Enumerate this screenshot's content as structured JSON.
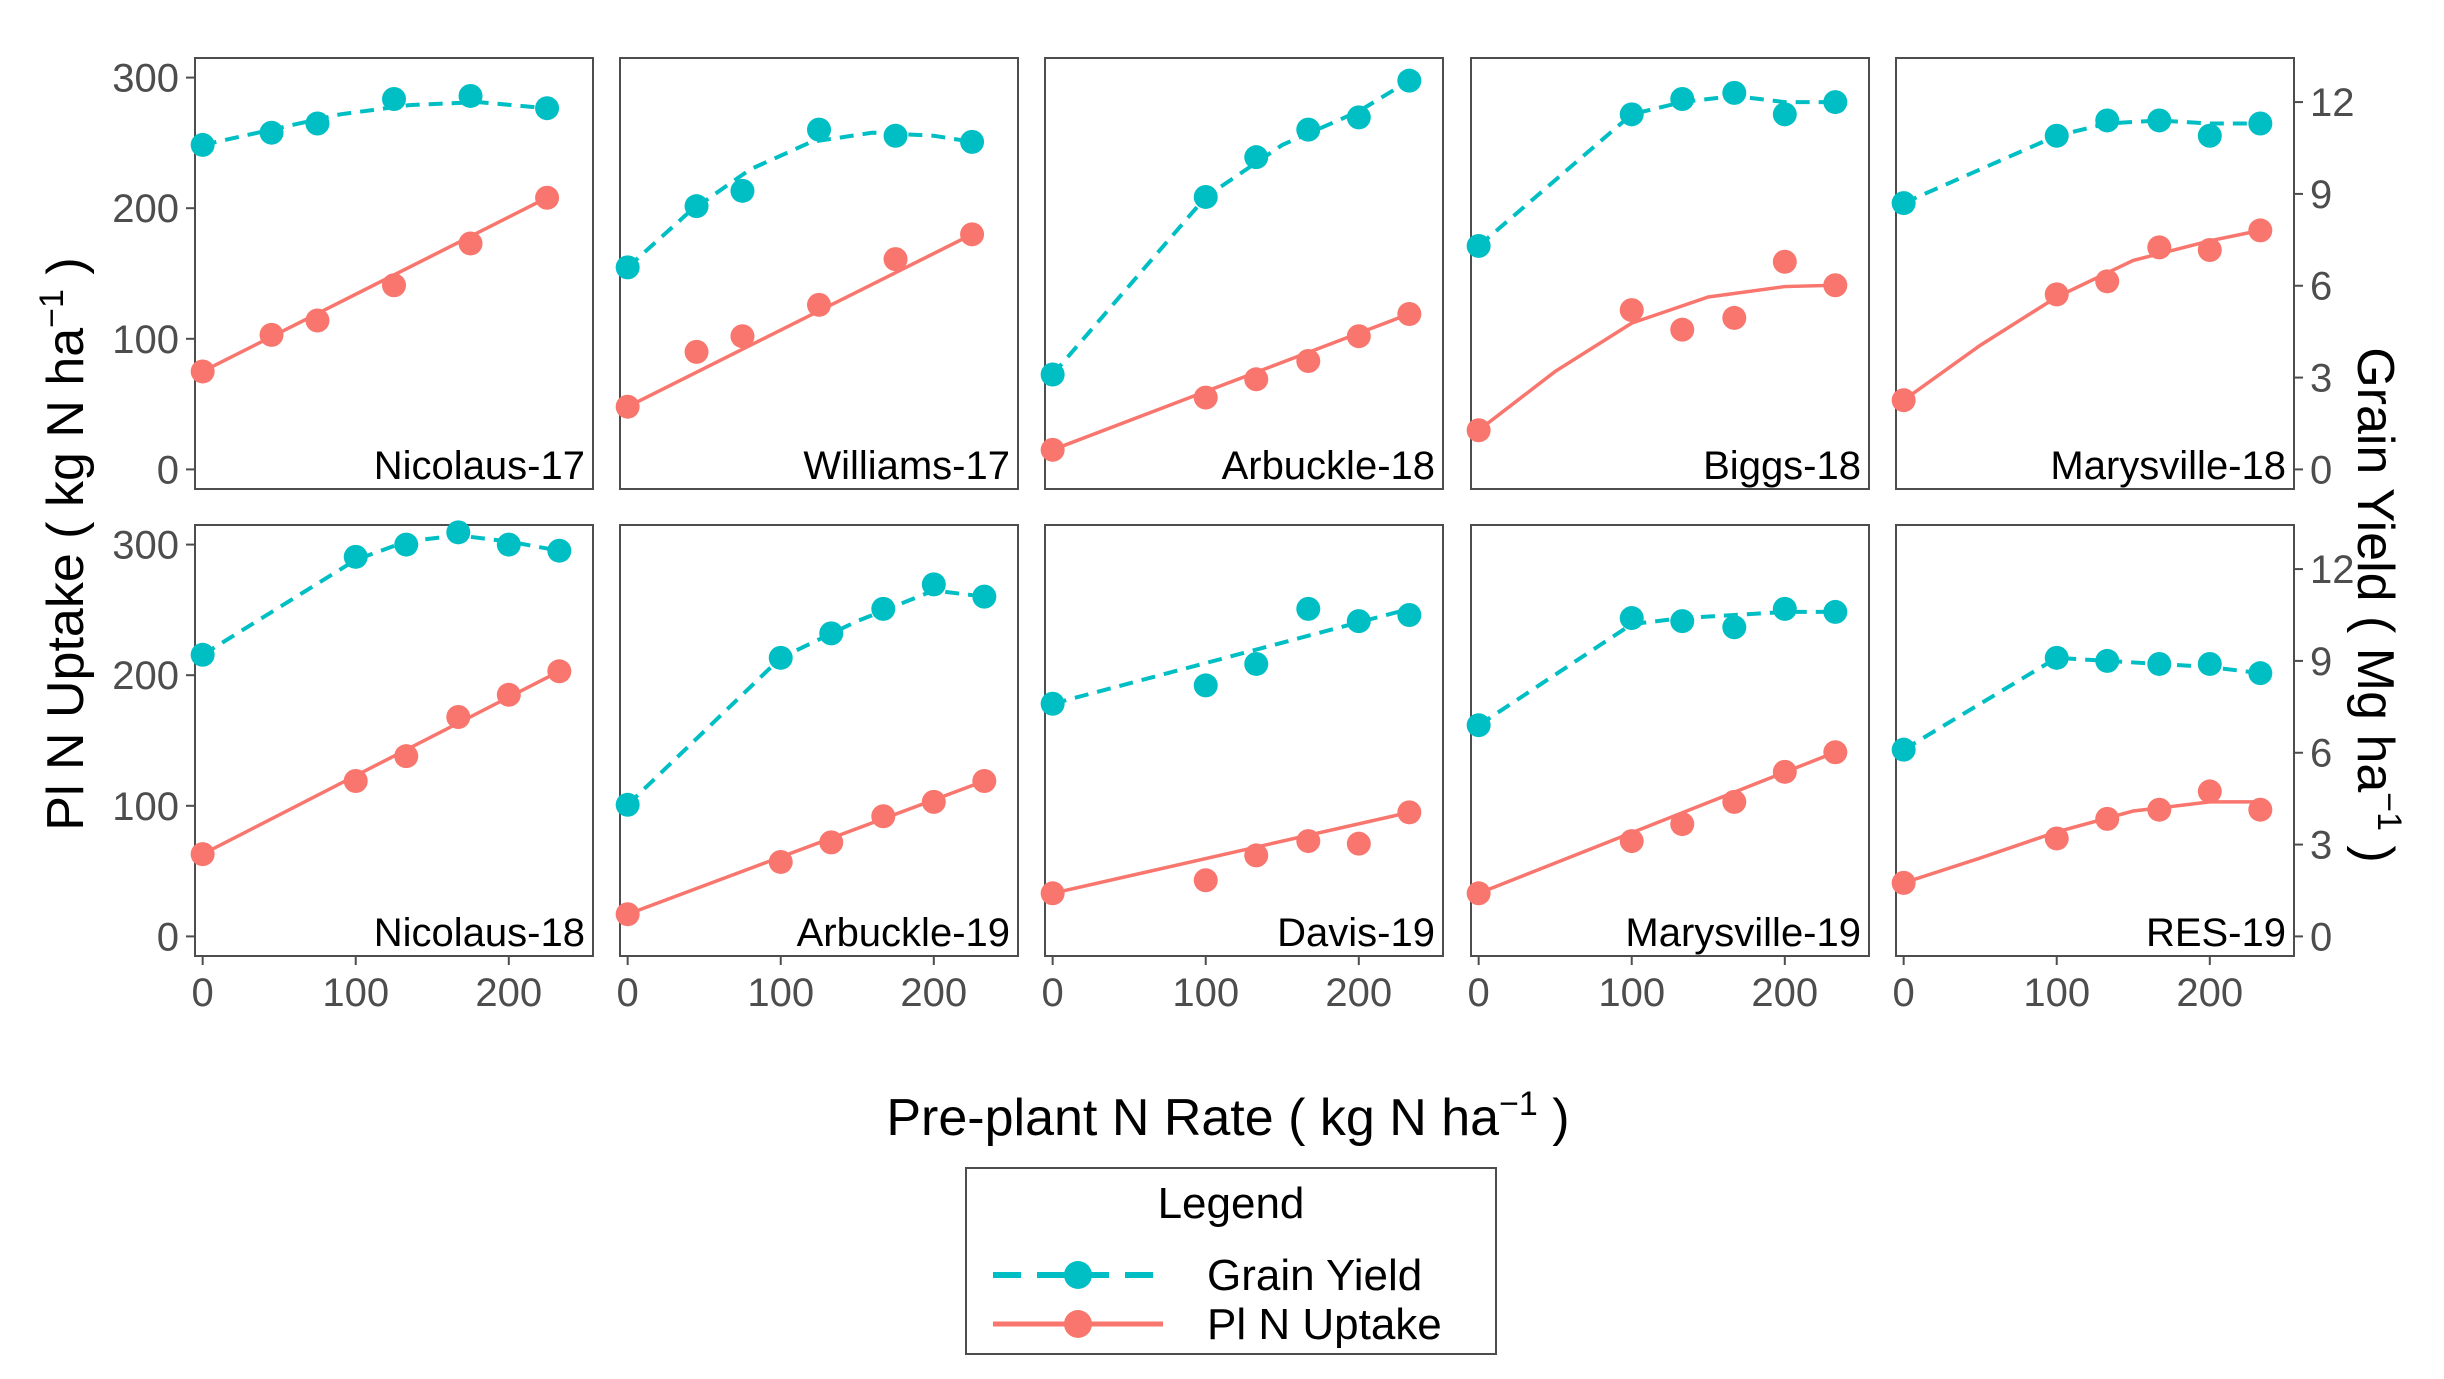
{
  "chart_data": {
    "type": "line",
    "title": "",
    "xlabel": "Pre-plant N Rate ( kg N ha",
    "xlabel_sup": "−1",
    "xlabel_end": " )",
    "ylabel_left": "Pl N Uptake ( kg N ha",
    "ylabel_left_sup": "−1",
    "ylabel_left_end": " )",
    "ylabel_right": "Grain Yield ( Mg ha",
    "ylabel_right_sup": "−1",
    "ylabel_right_end": " )",
    "xlim": [
      -5,
      255
    ],
    "ylim_left": [
      -15,
      315
    ],
    "ylim_right": [
      -0.64,
      13.44
    ],
    "xticks": [
      0,
      100,
      200
    ],
    "xtick_labels": [
      "0",
      "100",
      "200"
    ],
    "yticks_left": [
      0,
      100,
      200,
      300
    ],
    "ytick_labels_left": [
      "0",
      "100",
      "200",
      "300"
    ],
    "yticks_right": [
      0,
      3,
      6,
      9,
      12
    ],
    "ytick_labels_right": [
      "0",
      "3",
      "6",
      "9",
      "12"
    ],
    "grid": false,
    "legend": {
      "title": "Legend",
      "position": "bottom",
      "entries": [
        {
          "name": "Grain Yield",
          "color": "#00bfc4",
          "style": "dashed"
        },
        {
          "name": "Pl N Uptake",
          "color": "#f8766d",
          "style": "solid"
        }
      ]
    },
    "colors": {
      "yield": "#00bfc4",
      "uptake": "#f8766d",
      "frame": "#4d4d4d"
    },
    "panels": [
      {
        "label": "Nicolaus-17",
        "row": 0,
        "col": 0,
        "uptake": {
          "x": [
            0,
            45,
            75,
            125,
            175,
            225
          ],
          "y": [
            75,
            103,
            114,
            141,
            173,
            208
          ]
        },
        "uptake_fit": {
          "x": [
            0,
            225
          ],
          "y": [
            75,
            208
          ]
        },
        "yield": {
          "x": [
            0,
            45,
            75,
            125,
            175,
            225
          ],
          "y": [
            10.6,
            11.0,
            11.3,
            12.1,
            12.2,
            11.8
          ]
        },
        "yield_fit": {
          "x": [
            0,
            45,
            90,
            135,
            180,
            225
          ],
          "y": [
            10.6,
            11.1,
            11.6,
            11.9,
            12.0,
            11.8
          ]
        }
      },
      {
        "label": "Williams-17",
        "row": 0,
        "col": 1,
        "uptake": {
          "x": [
            0,
            45,
            75,
            125,
            175,
            225
          ],
          "y": [
            48,
            90,
            102,
            126,
            161,
            180
          ]
        },
        "uptake_fit": {
          "x": [
            0,
            225
          ],
          "y": [
            48,
            180
          ]
        },
        "yield": {
          "x": [
            0,
            45,
            75,
            125,
            175,
            225
          ],
          "y": [
            6.6,
            8.6,
            9.1,
            11.1,
            10.9,
            10.7
          ]
        },
        "yield_fit": {
          "x": [
            0,
            40,
            80,
            120,
            160,
            200,
            225
          ],
          "y": [
            6.6,
            8.4,
            9.8,
            10.7,
            11.0,
            10.9,
            10.7
          ]
        }
      },
      {
        "label": "Arbuckle-18",
        "row": 0,
        "col": 2,
        "uptake": {
          "x": [
            0,
            100,
            133,
            167,
            200,
            233
          ],
          "y": [
            15,
            55,
            69,
            83,
            102,
            119
          ]
        },
        "uptake_fit": {
          "x": [
            0,
            233
          ],
          "y": [
            15,
            119
          ]
        },
        "yield": {
          "x": [
            0,
            100,
            133,
            167,
            200,
            233
          ],
          "y": [
            3.1,
            8.9,
            10.2,
            11.1,
            11.5,
            12.7
          ]
        },
        "yield_fit": {
          "x": [
            0,
            100,
            150,
            200,
            233
          ],
          "y": [
            3.1,
            8.9,
            10.6,
            11.7,
            12.7
          ]
        }
      },
      {
        "label": "Biggs-18",
        "row": 0,
        "col": 3,
        "uptake": {
          "x": [
            0,
            100,
            133,
            167,
            200,
            233
          ],
          "y": [
            30,
            122,
            107,
            116,
            159,
            141
          ]
        },
        "uptake_fit": {
          "x": [
            0,
            50,
            100,
            150,
            200,
            233
          ],
          "y": [
            30,
            75,
            112,
            132,
            140,
            141
          ]
        },
        "yield": {
          "x": [
            0,
            100,
            133,
            167,
            200,
            233
          ],
          "y": [
            7.3,
            11.6,
            12.1,
            12.3,
            11.6,
            12.0
          ]
        },
        "yield_fit": {
          "x": [
            0,
            100,
            133,
            167,
            200,
            233
          ],
          "y": [
            7.3,
            11.6,
            12.0,
            12.2,
            12.0,
            12.0
          ]
        }
      },
      {
        "label": "Marysville-18",
        "row": 0,
        "col": 4,
        "uptake": {
          "x": [
            0,
            100,
            133,
            167,
            200,
            233
          ],
          "y": [
            53,
            134,
            144,
            170,
            168,
            183
          ]
        },
        "uptake_fit": {
          "x": [
            0,
            50,
            100,
            150,
            200,
            233
          ],
          "y": [
            53,
            95,
            132,
            160,
            175,
            183
          ]
        },
        "yield": {
          "x": [
            0,
            100,
            133,
            167,
            200,
            233
          ],
          "y": [
            8.7,
            10.9,
            11.4,
            11.4,
            10.9,
            11.3
          ]
        },
        "yield_fit": {
          "x": [
            0,
            100,
            133,
            167,
            200,
            233
          ],
          "y": [
            8.7,
            10.9,
            11.3,
            11.4,
            11.3,
            11.3
          ]
        }
      },
      {
        "label": "Nicolaus-18",
        "row": 1,
        "col": 0,
        "uptake": {
          "x": [
            0,
            100,
            133,
            167,
            200,
            233
          ],
          "y": [
            63,
            119,
            138,
            168,
            185,
            203
          ]
        },
        "uptake_fit": {
          "x": [
            0,
            233
          ],
          "y": [
            63,
            203
          ]
        },
        "yield": {
          "x": [
            0,
            100,
            133,
            167,
            200,
            233
          ],
          "y": [
            9.2,
            12.4,
            12.8,
            13.2,
            12.8,
            12.6
          ]
        },
        "yield_fit": {
          "x": [
            0,
            100,
            133,
            167,
            200,
            233
          ],
          "y": [
            9.2,
            12.3,
            12.9,
            13.1,
            12.9,
            12.6
          ]
        }
      },
      {
        "label": "Arbuckle-19",
        "row": 1,
        "col": 1,
        "uptake": {
          "x": [
            0,
            100,
            133,
            167,
            200,
            233
          ],
          "y": [
            17,
            57,
            72,
            92,
            103,
            119
          ]
        },
        "uptake_fit": {
          "x": [
            0,
            233
          ],
          "y": [
            17,
            119
          ]
        },
        "yield": {
          "x": [
            0,
            100,
            133,
            167,
            200,
            233
          ],
          "y": [
            4.3,
            9.1,
            9.9,
            10.7,
            11.5,
            11.1
          ]
        },
        "yield_fit": {
          "x": [
            0,
            100,
            150,
            200,
            233
          ],
          "y": [
            4.3,
            9.1,
            10.3,
            11.3,
            11.1
          ]
        }
      },
      {
        "label": "Davis-19",
        "row": 1,
        "col": 2,
        "uptake": {
          "x": [
            0,
            100,
            133,
            167,
            200,
            233
          ],
          "y": [
            33,
            43,
            62,
            73,
            71,
            95
          ]
        },
        "uptake_fit": {
          "x": [
            0,
            233
          ],
          "y": [
            33,
            95
          ]
        },
        "yield": {
          "x": [
            0,
            100,
            133,
            167,
            200,
            233
          ],
          "y": [
            7.6,
            8.2,
            8.9,
            10.7,
            10.3,
            10.5
          ]
        },
        "yield_fit": {
          "x": [
            0,
            233
          ],
          "y": [
            7.6,
            10.7
          ]
        }
      },
      {
        "label": "Marysville-19",
        "row": 1,
        "col": 3,
        "uptake": {
          "x": [
            0,
            100,
            133,
            167,
            200,
            233
          ],
          "y": [
            33,
            73,
            86,
            103,
            126,
            141
          ]
        },
        "uptake_fit": {
          "x": [
            0,
            233
          ],
          "y": [
            33,
            141
          ]
        },
        "yield": {
          "x": [
            0,
            100,
            133,
            167,
            200,
            233
          ],
          "y": [
            6.9,
            10.4,
            10.3,
            10.1,
            10.7,
            10.6
          ]
        },
        "yield_fit": {
          "x": [
            0,
            100,
            133,
            167,
            200,
            233
          ],
          "y": [
            6.9,
            10.2,
            10.4,
            10.5,
            10.6,
            10.6
          ]
        }
      },
      {
        "label": "RES-19",
        "row": 1,
        "col": 4,
        "uptake": {
          "x": [
            0,
            100,
            133,
            167,
            200,
            233
          ],
          "y": [
            41,
            75,
            90,
            97,
            111,
            97
          ]
        },
        "uptake_fit": {
          "x": [
            0,
            50,
            100,
            150,
            200,
            233
          ],
          "y": [
            41,
            60,
            80,
            96,
            103,
            103
          ]
        },
        "yield": {
          "x": [
            0,
            100,
            133,
            167,
            200,
            233
          ],
          "y": [
            6.1,
            9.1,
            9.0,
            8.9,
            8.9,
            8.6
          ]
        },
        "yield_fit": {
          "x": [
            0,
            100,
            133,
            167,
            200,
            233
          ],
          "y": [
            6.1,
            9.1,
            9.0,
            8.9,
            8.8,
            8.6
          ]
        }
      }
    ]
  }
}
